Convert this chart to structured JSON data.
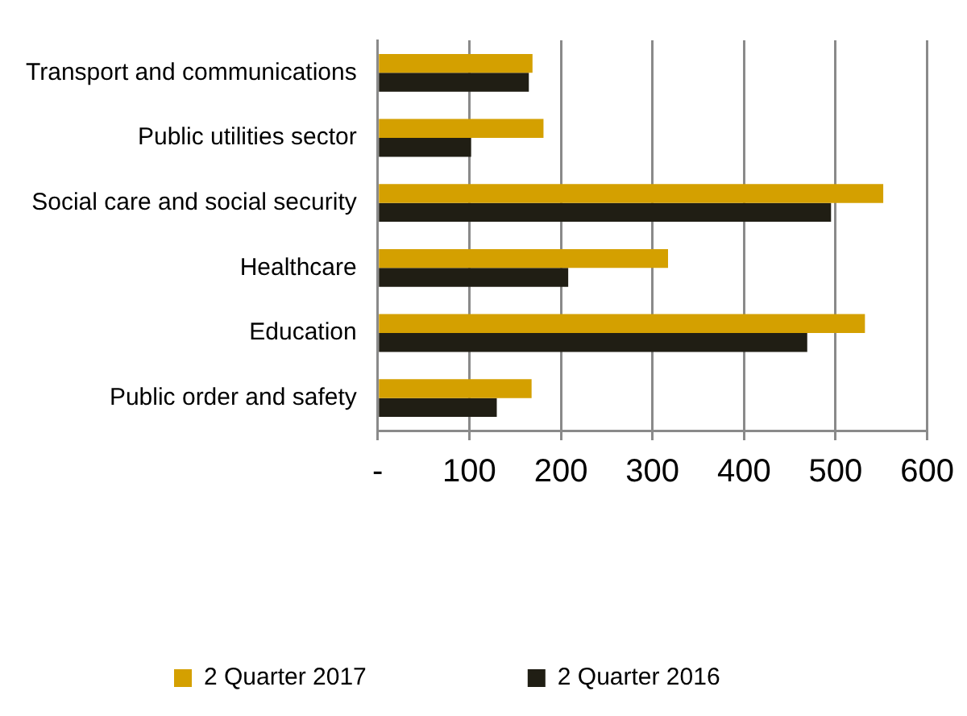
{
  "chart_data": {
    "type": "bar",
    "orientation": "horizontal",
    "categories": [
      "Transport and communications",
      "Public utilities sector",
      "Social care and social security",
      "Healthcare",
      "Education",
      "Public order and safety"
    ],
    "series": [
      {
        "name": "2 Quarter 2017",
        "color": "#d4a000",
        "values": [
          169,
          181,
          552,
          317,
          532,
          168
        ]
      },
      {
        "name": "2 Quarter 2016",
        "color": "#201e14",
        "values": [
          165,
          102,
          495,
          208,
          469,
          130
        ]
      }
    ],
    "xlim": [
      0,
      600
    ],
    "xticks": [
      {
        "value": 0,
        "label": "-"
      },
      100,
      200,
      300,
      400,
      500,
      600
    ],
    "grid": "x",
    "legend": "bottom"
  }
}
